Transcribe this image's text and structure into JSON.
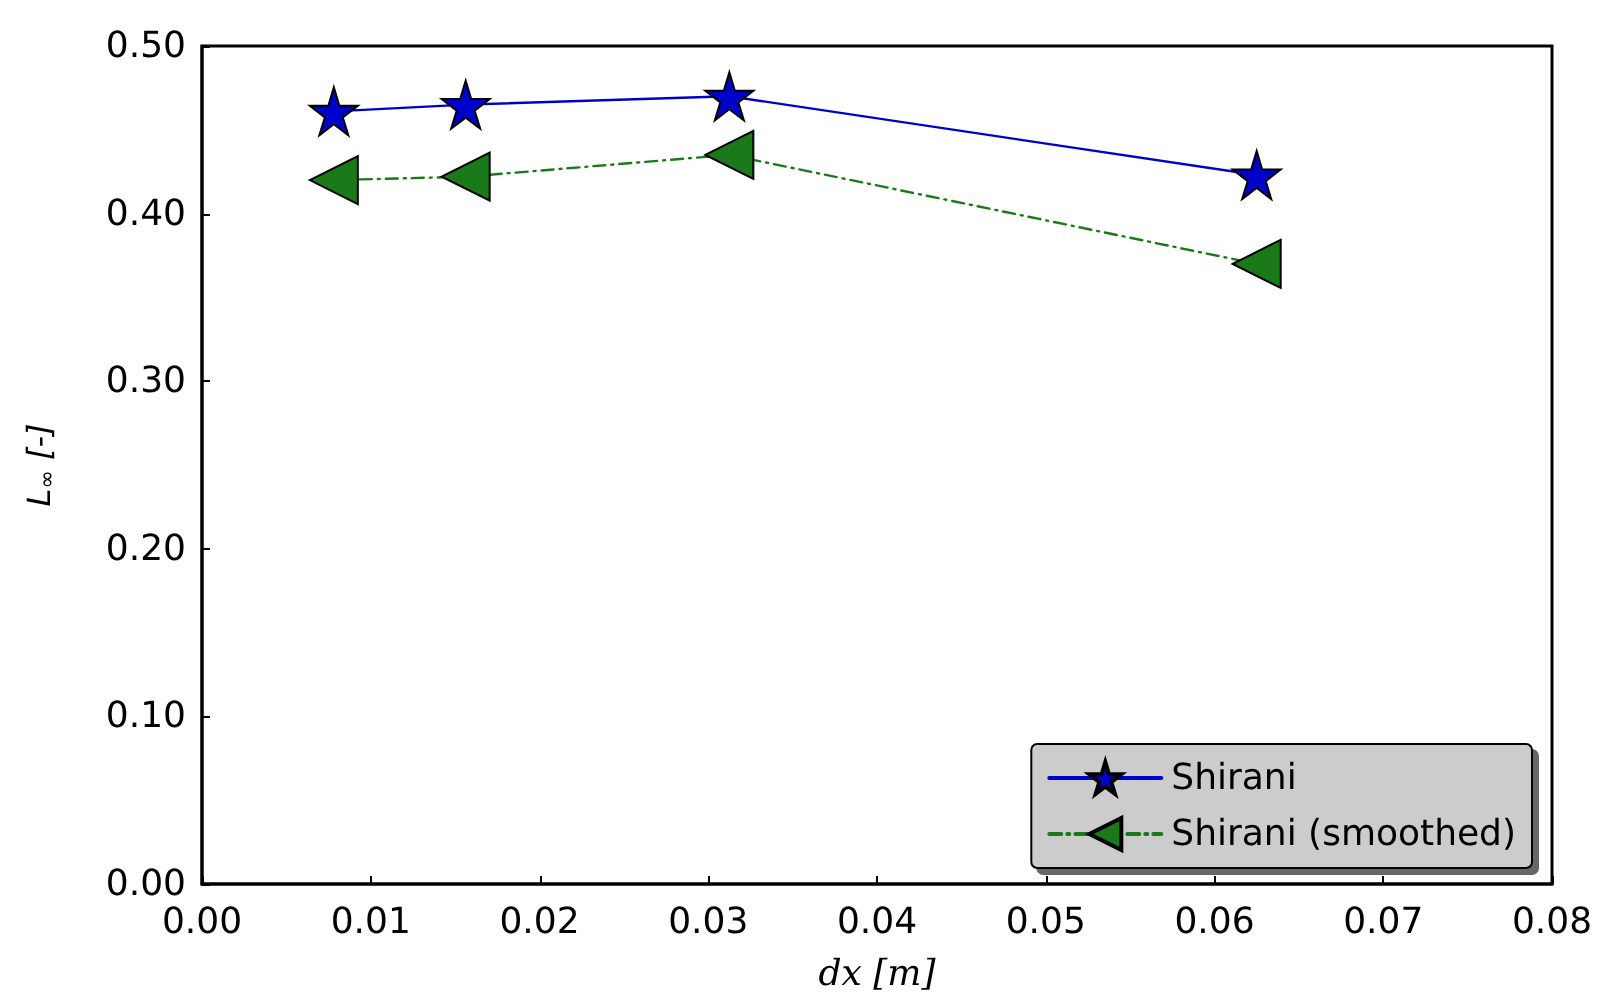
{
  "chart_data": {
    "type": "line",
    "xlabel": "dx [m]",
    "ylabel": "L$_{∞}$ [-]",
    "xlim": [
      0,
      0.08
    ],
    "xticks": [
      {
        "value": 0,
        "label": "0.00"
      },
      {
        "value": 0.01,
        "label": "0.01"
      },
      {
        "value": 0.02,
        "label": "0.02"
      },
      {
        "value": 0.03,
        "label": "0.03"
      },
      {
        "value": 0.04,
        "label": "0.04"
      },
      {
        "value": 0.05,
        "label": "0.05"
      },
      {
        "value": 0.06,
        "label": "0.06"
      },
      {
        "value": 0.07,
        "label": "0.07"
      },
      {
        "value": 0.08,
        "label": "0.08"
      }
    ],
    "ylim": [
      0,
      0.5
    ],
    "yticks": [
      {
        "value": 0,
        "label": "0.00"
      },
      {
        "value": 0.1,
        "label": "0.10"
      },
      {
        "value": 0.2,
        "label": "0.20"
      },
      {
        "value": 0.3,
        "label": "0.30"
      },
      {
        "value": 0.4,
        "label": "0.40"
      },
      {
        "value": 0.5,
        "label": "0.50"
      }
    ],
    "x": [
      0.0078125,
      0.015625,
      0.03125,
      0.0625
    ],
    "series": [
      {
        "name": "Shirani",
        "color": "#0000cc",
        "values": [
          0.461,
          0.465,
          0.47,
          0.423
        ],
        "marker": "star",
        "line_style": "solid"
      },
      {
        "name": "Shirani (smoothed)",
        "color": "#1a7a1a",
        "values": [
          0.42,
          0.422,
          0.435,
          0.37
        ],
        "marker": "triangle",
        "line_style": "dashed"
      }
    ],
    "legend": "bottom right",
    "grid": false
  }
}
